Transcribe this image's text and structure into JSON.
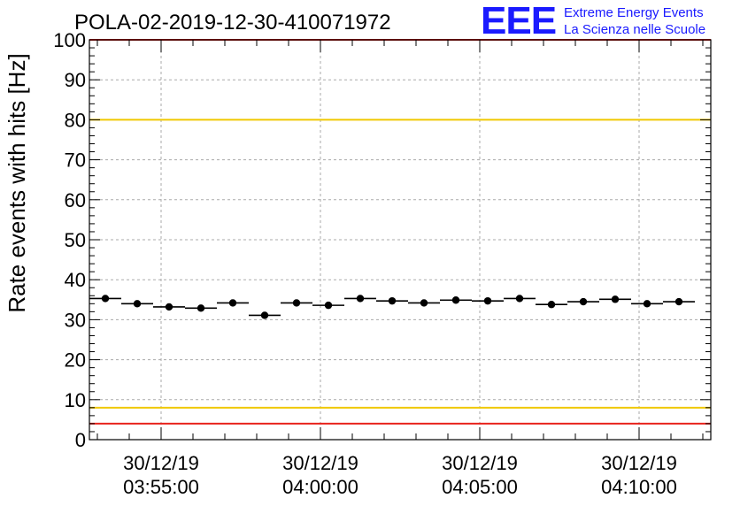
{
  "header": {
    "title": "POLA-02-2019-12-30-410071972",
    "logo_text": "EEE",
    "logo_line1": "Extreme Energy Events",
    "logo_line2": "La Scienza nelle Scuole"
  },
  "colors": {
    "red_line": "#e8221c",
    "yellow_line": "#f0c800",
    "logo_blue": "#1a1aff",
    "marker": "#000000"
  },
  "chart_data": {
    "type": "scatter",
    "title": "POLA-02-2019-12-30-410071972",
    "xlabel": "",
    "ylabel": "Rate events with hits [Hz]",
    "ylim": [
      0,
      100
    ],
    "xlim": [
      "2019-12-30 03:52:45",
      "2019-12-30 04:12:15"
    ],
    "grid": true,
    "yticks": [
      0,
      10,
      20,
      30,
      40,
      50,
      60,
      70,
      80,
      90,
      100
    ],
    "xticks": [
      {
        "time": "2019-12-30 03:55:00",
        "date_label": "30/12/19",
        "time_label": "03:55:00"
      },
      {
        "time": "2019-12-30 04:00:00",
        "date_label": "30/12/19",
        "time_label": "04:00:00"
      },
      {
        "time": "2019-12-30 04:05:00",
        "date_label": "30/12/19",
        "time_label": "04:05:00"
      },
      {
        "time": "2019-12-30 04:10:00",
        "date_label": "30/12/19",
        "time_label": "04:10:00"
      }
    ],
    "reference_lines": [
      {
        "name": "red-upper",
        "y": 100,
        "color": "#e8221c"
      },
      {
        "name": "yellow-upper",
        "y": 80,
        "color": "#f0c800"
      },
      {
        "name": "yellow-lower",
        "y": 8,
        "color": "#f0c800"
      },
      {
        "name": "red-lower",
        "y": 4,
        "color": "#e8221c"
      }
    ],
    "series": [
      {
        "bin_width_seconds": 60,
        "points": [
          {
            "x": "2019-12-30 03:53:15",
            "y": 35.3
          },
          {
            "x": "2019-12-30 03:54:15",
            "y": 34.0
          },
          {
            "x": "2019-12-30 03:55:15",
            "y": 33.2
          },
          {
            "x": "2019-12-30 03:56:15",
            "y": 32.9
          },
          {
            "x": "2019-12-30 03:57:15",
            "y": 34.2
          },
          {
            "x": "2019-12-30 03:58:15",
            "y": 31.1
          },
          {
            "x": "2019-12-30 03:59:15",
            "y": 34.2
          },
          {
            "x": "2019-12-30 04:00:15",
            "y": 33.6
          },
          {
            "x": "2019-12-30 04:01:15",
            "y": 35.3
          },
          {
            "x": "2019-12-30 04:02:15",
            "y": 34.7
          },
          {
            "x": "2019-12-30 04:03:15",
            "y": 34.2
          },
          {
            "x": "2019-12-30 04:04:15",
            "y": 34.9
          },
          {
            "x": "2019-12-30 04:05:15",
            "y": 34.7
          },
          {
            "x": "2019-12-30 04:06:15",
            "y": 35.3
          },
          {
            "x": "2019-12-30 04:07:15",
            "y": 33.8
          },
          {
            "x": "2019-12-30 04:08:15",
            "y": 34.5
          },
          {
            "x": "2019-12-30 04:09:15",
            "y": 35.1
          },
          {
            "x": "2019-12-30 04:10:15",
            "y": 34.0
          },
          {
            "x": "2019-12-30 04:11:15",
            "y": 34.5
          }
        ]
      }
    ]
  }
}
